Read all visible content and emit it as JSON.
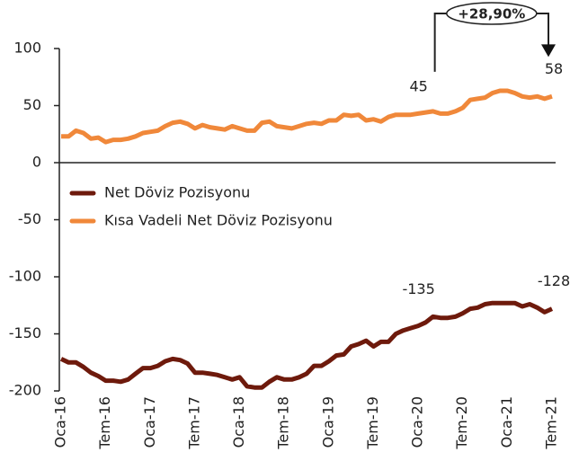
{
  "chart_data": {
    "type": "line",
    "categories": [
      "Oca-16",
      null,
      null,
      null,
      null,
      null,
      "Tem-16",
      null,
      null,
      null,
      null,
      null,
      "Oca-17",
      null,
      null,
      null,
      null,
      null,
      "Tem-17",
      null,
      null,
      null,
      null,
      null,
      "Oca-18",
      null,
      null,
      null,
      null,
      null,
      "Tem-18",
      null,
      null,
      null,
      null,
      null,
      "Oca-19",
      null,
      null,
      null,
      null,
      null,
      "Tem-19",
      null,
      null,
      null,
      null,
      null,
      "Oca-20",
      null,
      null,
      null,
      null,
      null,
      "Tem-20",
      null,
      null,
      null,
      null,
      null,
      "Oca-21",
      null,
      null,
      null,
      null,
      null,
      "Tem-21"
    ],
    "series": [
      {
        "name": "Net Döviz Pozisyonu",
        "color": "#6e1a0c",
        "values": [
          -172,
          -175,
          -175,
          -179,
          -184,
          -187,
          -191,
          -191,
          -192,
          -190,
          -185,
          -180,
          -180,
          -178,
          -174,
          -172,
          -173,
          -176,
          -184,
          -184,
          -185,
          -186,
          -188,
          -190,
          -188,
          -196,
          -197,
          -197,
          -192,
          -188,
          -190,
          -190,
          -188,
          -185,
          -178,
          -178,
          -174,
          -169,
          -168,
          -161,
          -159,
          -156,
          -161,
          -157,
          -157,
          -150,
          -147,
          -145,
          -143,
          -140,
          -135,
          -136,
          -136,
          -135,
          -132,
          -128,
          -127,
          -124,
          -123,
          -123,
          -123,
          -123,
          -126,
          -124,
          -127,
          -131,
          -128
        ]
      },
      {
        "name": "Kısa Vadeli Net Döviz Pozisyonu",
        "color": "#f0883a",
        "values": [
          23,
          23,
          28,
          26,
          21,
          22,
          18,
          20,
          20,
          21,
          23,
          26,
          27,
          28,
          32,
          35,
          36,
          34,
          30,
          33,
          31,
          30,
          29,
          32,
          30,
          28,
          28,
          35,
          36,
          32,
          31,
          30,
          32,
          34,
          35,
          34,
          37,
          37,
          42,
          41,
          42,
          37,
          38,
          36,
          40,
          42,
          42,
          42,
          43,
          44,
          45,
          43,
          43,
          45,
          48,
          55,
          56,
          57,
          61,
          63,
          63,
          61,
          58,
          57,
          58,
          56,
          58
        ]
      }
    ],
    "annotations": [
      {
        "text": "45",
        "series": 1,
        "index": 50
      },
      {
        "text": "58",
        "series": 1,
        "index": 66
      },
      {
        "text": "-135",
        "series": 0,
        "index": 50
      },
      {
        "text": "-128",
        "series": 0,
        "index": 66
      },
      {
        "text": "+28,90%",
        "from": 50,
        "to": 66
      }
    ],
    "ylim": [
      -200,
      100
    ],
    "yticks": [
      -200,
      -150,
      -100,
      -50,
      0,
      50,
      100
    ],
    "legend": "left"
  }
}
